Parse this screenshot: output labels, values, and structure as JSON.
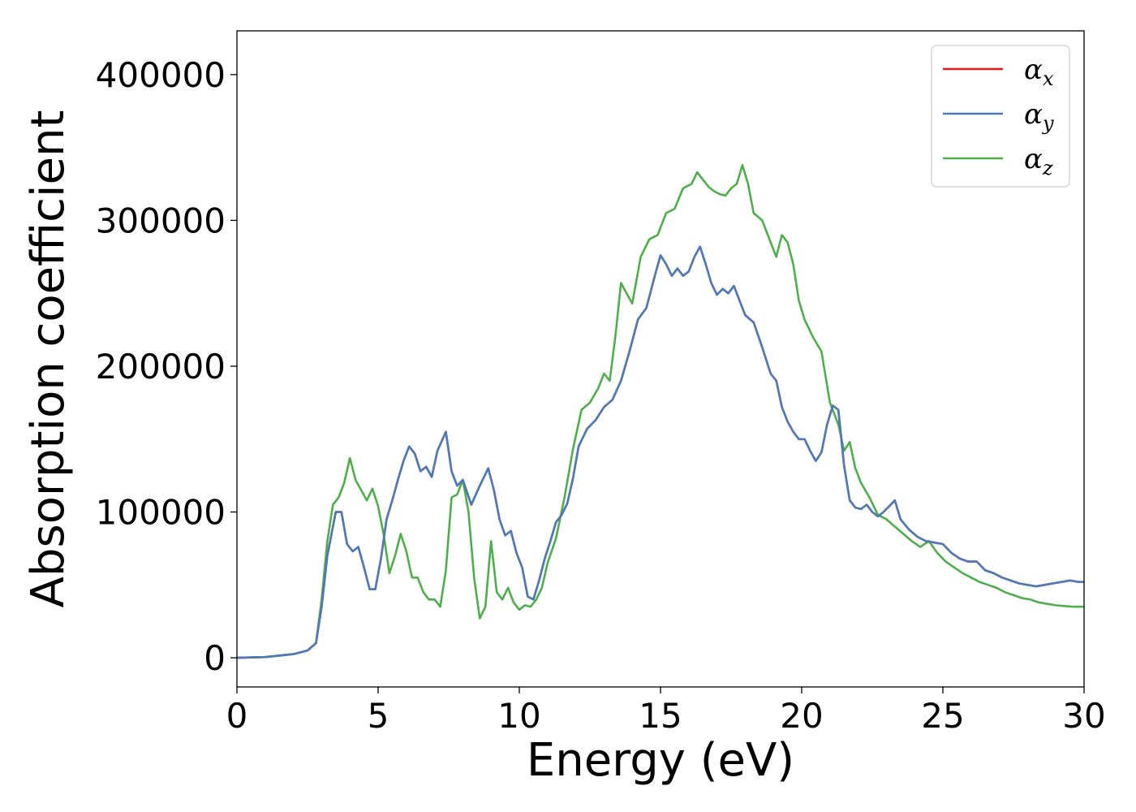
{
  "chart_data": {
    "type": "line",
    "xlabel": "Energy (eV)",
    "ylabel": "Absorption coefficient",
    "xlim": [
      0,
      30
    ],
    "ylim": [
      -20000,
      430000
    ],
    "xticks": [
      0,
      5,
      10,
      15,
      20,
      25,
      30
    ],
    "yticks": [
      0,
      100000,
      200000,
      300000,
      400000
    ],
    "xtick_labels": [
      "0",
      "5",
      "10",
      "15",
      "20",
      "25",
      "30"
    ],
    "ytick_labels": [
      "0",
      "100000",
      "200000",
      "300000",
      "400000"
    ],
    "grid": false,
    "legend_position": "top-right",
    "series": [
      {
        "name": "α_x",
        "legend_main": "α",
        "legend_sub": "x",
        "color": "#e41a1c",
        "x": [
          0,
          1,
          2,
          2.5,
          2.8,
          3.0,
          3.2,
          3.5,
          3.7,
          3.9,
          4.1,
          4.3,
          4.5,
          4.7,
          4.9,
          5.1,
          5.3,
          5.5,
          5.7,
          5.9,
          6.1,
          6.3,
          6.5,
          6.7,
          6.9,
          7.1,
          7.4,
          7.6,
          7.8,
          8.0,
          8.3,
          8.6,
          8.9,
          9.1,
          9.3,
          9.5,
          9.7,
          9.9,
          10.1,
          10.3,
          10.5,
          10.7,
          10.9,
          11.1,
          11.3,
          11.5,
          11.7,
          11.9,
          12.1,
          12.4,
          12.7,
          13.0,
          13.3,
          13.6,
          13.9,
          14.2,
          14.5,
          14.8,
          15.0,
          15.2,
          15.4,
          15.6,
          15.8,
          16.0,
          16.2,
          16.4,
          16.6,
          16.8,
          17.0,
          17.2,
          17.4,
          17.6,
          17.8,
          18.0,
          18.3,
          18.6,
          18.9,
          19.1,
          19.3,
          19.5,
          19.7,
          19.9,
          20.1,
          20.3,
          20.5,
          20.7,
          20.9,
          21.1,
          21.3,
          21.5,
          21.7,
          21.9,
          22.1,
          22.3,
          22.5,
          22.7,
          22.9,
          23.1,
          23.3,
          23.5,
          23.8,
          24.1,
          24.4,
          24.7,
          25.0,
          25.3,
          25.6,
          25.9,
          26.2,
          26.5,
          26.8,
          27.1,
          27.4,
          27.7,
          28.0,
          28.3,
          28.6,
          28.9,
          29.2,
          29.5,
          29.8,
          30.0
        ],
        "y": [
          0,
          500,
          2500,
          5000,
          10000,
          35000,
          70000,
          100000,
          100000,
          78000,
          73000,
          76000,
          62000,
          47000,
          47000,
          68000,
          95000,
          108000,
          122000,
          135000,
          145000,
          140000,
          128000,
          131000,
          124000,
          142000,
          155000,
          128000,
          118000,
          122000,
          105000,
          118000,
          130000,
          115000,
          95000,
          84000,
          87000,
          72000,
          62000,
          42000,
          40000,
          53000,
          68000,
          80000,
          93000,
          98000,
          106000,
          123000,
          145000,
          157000,
          163000,
          172000,
          177000,
          190000,
          210000,
          232000,
          240000,
          262000,
          276000,
          270000,
          262000,
          267000,
          262000,
          265000,
          275000,
          282000,
          270000,
          257000,
          249000,
          253000,
          250000,
          255000,
          245000,
          235000,
          230000,
          213000,
          195000,
          190000,
          172000,
          162000,
          155000,
          150000,
          150000,
          142000,
          135000,
          141000,
          160000,
          173000,
          170000,
          132000,
          108000,
          103000,
          102000,
          105000,
          100000,
          97000,
          100000,
          104000,
          108000,
          95000,
          88000,
          83000,
          80000,
          79000,
          78000,
          72000,
          68000,
          66000,
          66000,
          60000,
          58000,
          55000,
          53000,
          51000,
          50000,
          49000,
          50000,
          51000,
          52000,
          53000,
          52000,
          52000
        ]
      },
      {
        "name": "α_y",
        "legend_main": "α",
        "legend_sub": "y",
        "color": "#4a7db8",
        "x": [
          0,
          1,
          2,
          2.5,
          2.8,
          3.0,
          3.2,
          3.5,
          3.7,
          3.9,
          4.1,
          4.3,
          4.5,
          4.7,
          4.9,
          5.1,
          5.3,
          5.5,
          5.7,
          5.9,
          6.1,
          6.3,
          6.5,
          6.7,
          6.9,
          7.1,
          7.4,
          7.6,
          7.8,
          8.0,
          8.3,
          8.6,
          8.9,
          9.1,
          9.3,
          9.5,
          9.7,
          9.9,
          10.1,
          10.3,
          10.5,
          10.7,
          10.9,
          11.1,
          11.3,
          11.5,
          11.7,
          11.9,
          12.1,
          12.4,
          12.7,
          13.0,
          13.3,
          13.6,
          13.9,
          14.2,
          14.5,
          14.8,
          15.0,
          15.2,
          15.4,
          15.6,
          15.8,
          16.0,
          16.2,
          16.4,
          16.6,
          16.8,
          17.0,
          17.2,
          17.4,
          17.6,
          17.8,
          18.0,
          18.3,
          18.6,
          18.9,
          19.1,
          19.3,
          19.5,
          19.7,
          19.9,
          20.1,
          20.3,
          20.5,
          20.7,
          20.9,
          21.1,
          21.3,
          21.5,
          21.7,
          21.9,
          22.1,
          22.3,
          22.5,
          22.7,
          22.9,
          23.1,
          23.3,
          23.5,
          23.8,
          24.1,
          24.4,
          24.7,
          25.0,
          25.3,
          25.6,
          25.9,
          26.2,
          26.5,
          26.8,
          27.1,
          27.4,
          27.7,
          28.0,
          28.3,
          28.6,
          28.9,
          29.2,
          29.5,
          29.8,
          30.0
        ],
        "y": [
          0,
          500,
          2500,
          5000,
          10000,
          35000,
          70000,
          100000,
          100000,
          78000,
          73000,
          76000,
          62000,
          47000,
          47000,
          68000,
          95000,
          108000,
          122000,
          135000,
          145000,
          140000,
          128000,
          131000,
          124000,
          142000,
          155000,
          128000,
          118000,
          122000,
          105000,
          118000,
          130000,
          115000,
          95000,
          84000,
          87000,
          72000,
          62000,
          42000,
          40000,
          53000,
          68000,
          80000,
          93000,
          98000,
          106000,
          123000,
          145000,
          157000,
          163000,
          172000,
          177000,
          190000,
          210000,
          232000,
          240000,
          262000,
          276000,
          270000,
          262000,
          267000,
          262000,
          265000,
          275000,
          282000,
          270000,
          257000,
          249000,
          253000,
          250000,
          255000,
          245000,
          235000,
          230000,
          213000,
          195000,
          190000,
          172000,
          162000,
          155000,
          150000,
          150000,
          142000,
          135000,
          141000,
          160000,
          173000,
          170000,
          132000,
          108000,
          103000,
          102000,
          105000,
          100000,
          97000,
          100000,
          104000,
          108000,
          95000,
          88000,
          83000,
          80000,
          79000,
          78000,
          72000,
          68000,
          66000,
          66000,
          60000,
          58000,
          55000,
          53000,
          51000,
          50000,
          49000,
          50000,
          51000,
          52000,
          53000,
          52000,
          52000
        ]
      },
      {
        "name": "α_z",
        "legend_main": "α",
        "legend_sub": "z",
        "color": "#4daf4a",
        "x": [
          0,
          1,
          2,
          2.5,
          2.8,
          3.0,
          3.2,
          3.4,
          3.6,
          3.8,
          4.0,
          4.2,
          4.4,
          4.6,
          4.8,
          5.0,
          5.2,
          5.4,
          5.6,
          5.8,
          6.0,
          6.2,
          6.4,
          6.6,
          6.8,
          7.0,
          7.2,
          7.4,
          7.6,
          7.8,
          8.0,
          8.2,
          8.4,
          8.6,
          8.8,
          9.0,
          9.2,
          9.4,
          9.6,
          9.8,
          10.0,
          10.2,
          10.4,
          10.6,
          10.8,
          11.0,
          11.3,
          11.6,
          11.9,
          12.2,
          12.5,
          12.8,
          13.0,
          13.2,
          13.4,
          13.6,
          13.8,
          14.0,
          14.3,
          14.6,
          14.9,
          15.2,
          15.5,
          15.8,
          16.1,
          16.3,
          16.5,
          16.7,
          16.9,
          17.1,
          17.3,
          17.5,
          17.7,
          17.9,
          18.1,
          18.3,
          18.6,
          18.9,
          19.1,
          19.3,
          19.5,
          19.7,
          19.9,
          20.1,
          20.4,
          20.7,
          21.0,
          21.3,
          21.5,
          21.7,
          21.9,
          22.1,
          22.4,
          22.7,
          23.0,
          23.3,
          23.6,
          23.9,
          24.2,
          24.5,
          24.8,
          25.1,
          25.4,
          25.7,
          26.0,
          26.3,
          26.6,
          26.9,
          27.2,
          27.5,
          27.8,
          28.1,
          28.4,
          28.7,
          29.0,
          29.3,
          29.6,
          30.0
        ],
        "y": [
          0,
          500,
          2500,
          5000,
          10000,
          40000,
          80000,
          105000,
          110000,
          120000,
          137000,
          122000,
          115000,
          108000,
          116000,
          104000,
          84000,
          58000,
          70000,
          85000,
          73000,
          55000,
          55000,
          45000,
          40000,
          40000,
          35000,
          60000,
          110000,
          112000,
          122000,
          100000,
          55000,
          27000,
          35000,
          80000,
          45000,
          40000,
          48000,
          38000,
          33000,
          36000,
          35000,
          40000,
          48000,
          65000,
          82000,
          110000,
          143000,
          170000,
          175000,
          185000,
          195000,
          190000,
          220000,
          257000,
          250000,
          243000,
          275000,
          287000,
          290000,
          305000,
          308000,
          322000,
          325000,
          333000,
          328000,
          323000,
          320000,
          318000,
          317000,
          322000,
          325000,
          338000,
          325000,
          305000,
          300000,
          285000,
          275000,
          290000,
          285000,
          270000,
          245000,
          232000,
          220000,
          210000,
          175000,
          160000,
          142000,
          148000,
          130000,
          120000,
          110000,
          98000,
          95000,
          90000,
          85000,
          80000,
          76000,
          80000,
          72000,
          66000,
          62000,
          58000,
          55000,
          52000,
          50000,
          48000,
          45000,
          43000,
          41000,
          40000,
          38000,
          37000,
          36000,
          35500,
          35000,
          35000
        ]
      }
    ]
  }
}
